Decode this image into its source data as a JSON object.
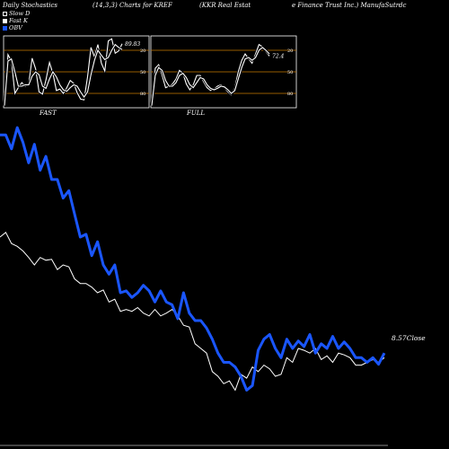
{
  "header": {
    "title": "Daily Stochastics",
    "params": "(14,3,3) Charts for KREF",
    "company_part1": "(KKR Real Estat",
    "company_part2": "e  Finance  Trust Inc.) ManufaSutrdc"
  },
  "legend": [
    {
      "label": "Slow  D",
      "color": "#ffffff"
    },
    {
      "label": "Fast K",
      "color": "#ffffff"
    },
    {
      "label": "OBV",
      "color": "#1a56ff"
    }
  ],
  "colors": {
    "obv": "#1a56ff",
    "price": "#ffffff",
    "ref_line": "#c87a00",
    "panel_border": "#ffffff"
  },
  "chart_data": [
    {
      "type": "line",
      "panel": "FAST",
      "ylim": [
        0,
        100
      ],
      "ref_lines": [
        20,
        50,
        80
      ],
      "ytick_labels": [
        "80",
        "50",
        "20"
      ],
      "last_value_label": "89.83",
      "series": [
        {
          "name": "Fast K",
          "values": [
            3,
            74,
            65,
            20,
            28,
            35,
            30,
            34,
            69,
            54,
            22,
            19,
            39,
            63,
            48,
            24,
            26,
            20,
            28,
            38,
            34,
            21,
            12,
            11,
            43,
            84,
            71,
            88,
            62,
            51,
            93,
            96,
            76,
            79,
            89
          ]
        },
        {
          "name": "Slow  D",
          "values": [
            3,
            65,
            68,
            50,
            30,
            30,
            32,
            32,
            44,
            50,
            46,
            30,
            27,
            40,
            50,
            43,
            32,
            25,
            23,
            28,
            32,
            30,
            22,
            15,
            22,
            46,
            66,
            80,
            73,
            67,
            70,
            80,
            88,
            84,
            81
          ]
        }
      ]
    },
    {
      "type": "line",
      "panel": "FULL",
      "ylim": [
        0,
        100
      ],
      "ref_lines": [
        20,
        50,
        80
      ],
      "ytick_labels": [
        "80",
        "50",
        "20"
      ],
      "last_value_label": "72.4",
      "series": [
        {
          "name": "Fast K",
          "values": [
            3,
            55,
            60,
            45,
            28,
            30,
            33,
            40,
            52,
            48,
            33,
            25,
            32,
            45,
            45,
            36,
            28,
            24,
            26,
            30,
            32,
            28,
            22,
            18,
            28,
            50,
            66,
            75,
            68,
            62,
            75,
            88,
            85,
            78,
            72
          ]
        },
        {
          "name": "Slow  D",
          "values": [
            3,
            45,
            56,
            52,
            38,
            30,
            30,
            35,
            45,
            48,
            42,
            32,
            28,
            35,
            42,
            40,
            32,
            27,
            25,
            27,
            30,
            29,
            25,
            20,
            24,
            40,
            56,
            68,
            70,
            66,
            70,
            80,
            84,
            80,
            75
          ]
        }
      ]
    },
    {
      "type": "line",
      "panel": "main",
      "last_price_label": "8.57Close",
      "series": [
        {
          "name": "OBV",
          "values": [
            310,
            310,
            295,
            318,
            302,
            280,
            300,
            272,
            287,
            262,
            262,
            242,
            250,
            225,
            200,
            203,
            180,
            195,
            170,
            160,
            170,
            140,
            142,
            135,
            140,
            148,
            142,
            130,
            142,
            130,
            127,
            112,
            140,
            118,
            110,
            110,
            102,
            90,
            75,
            65,
            65,
            60,
            50,
            35,
            40,
            78,
            90,
            95,
            80,
            70,
            90,
            80,
            88,
            82,
            95,
            75,
            85,
            80,
            93,
            80,
            87,
            80,
            70,
            70,
            65,
            70,
            63,
            75
          ]
        },
        {
          "name": "Price",
          "values": [
            200,
            205,
            193,
            190,
            185,
            178,
            170,
            178,
            175,
            176,
            165,
            170,
            168,
            155,
            150,
            150,
            146,
            140,
            143,
            130,
            133,
            120,
            122,
            120,
            124,
            118,
            115,
            122,
            115,
            118,
            122,
            115,
            105,
            103,
            85,
            80,
            75,
            55,
            50,
            42,
            45,
            35,
            52,
            48,
            60,
            55,
            62,
            58,
            50,
            52,
            70,
            65,
            80,
            78,
            75,
            80,
            68,
            72,
            65,
            75,
            73,
            70,
            62,
            62,
            65,
            68,
            65,
            70
          ]
        }
      ]
    }
  ]
}
